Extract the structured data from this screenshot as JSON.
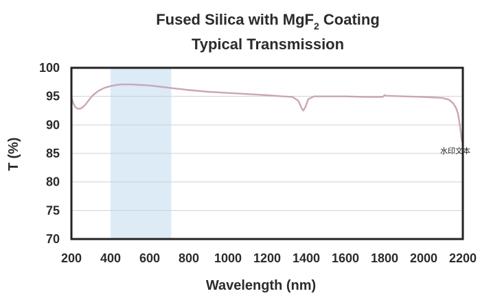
{
  "chart_data": {
    "type": "line",
    "title_line1_main": "Fused Silica with MgF",
    "title_line1_sub": "2",
    "title_line1_tail": " Coating",
    "title_line2": "Typical Transmission",
    "xlabel": "Wavelength (nm)",
    "ylabel": "T (%)",
    "xlim": [
      200,
      2200
    ],
    "ylim": [
      70,
      100
    ],
    "xticks": [
      "200",
      "400",
      "600",
      "800",
      "1000",
      "1200",
      "1400",
      "1600",
      "1800",
      "2000",
      "2200"
    ],
    "yticks": [
      "100",
      "95",
      "90",
      "85",
      "80",
      "75",
      "70"
    ],
    "grid": true,
    "highlight_band": [
      400,
      710
    ],
    "colors": {
      "line": "#c9a6b6",
      "band": "#dcebf6",
      "grid": "#cfcfcf",
      "frame": "#222222"
    },
    "series": [
      {
        "x": [
          200,
          210,
          220,
          235,
          250,
          270,
          290,
          310,
          340,
          370,
          400,
          430,
          460,
          500,
          550,
          600,
          650,
          700,
          750,
          800,
          900,
          1000,
          1100,
          1200,
          1280,
          1330,
          1360,
          1375,
          1385,
          1395,
          1410,
          1440,
          1500,
          1600,
          1700,
          1790,
          1800,
          1810,
          1900,
          2000,
          2050,
          2100,
          2130,
          2150,
          2165,
          2175,
          2185,
          2195
        ],
        "y": [
          94.8,
          93.8,
          93.1,
          92.8,
          92.9,
          93.5,
          94.4,
          95.2,
          96.0,
          96.5,
          96.8,
          97.0,
          97.1,
          97.1,
          97.0,
          96.9,
          96.7,
          96.5,
          96.3,
          96.1,
          95.8,
          95.6,
          95.4,
          95.2,
          95.0,
          94.9,
          94.2,
          93.0,
          92.5,
          93.1,
          94.5,
          95.0,
          95.0,
          95.0,
          94.9,
          94.9,
          95.2,
          95.1,
          95.0,
          94.9,
          94.8,
          94.7,
          94.4,
          93.8,
          93.0,
          92.0,
          90.0,
          87.0
        ]
      }
    ]
  },
  "watermark": "水印文本"
}
